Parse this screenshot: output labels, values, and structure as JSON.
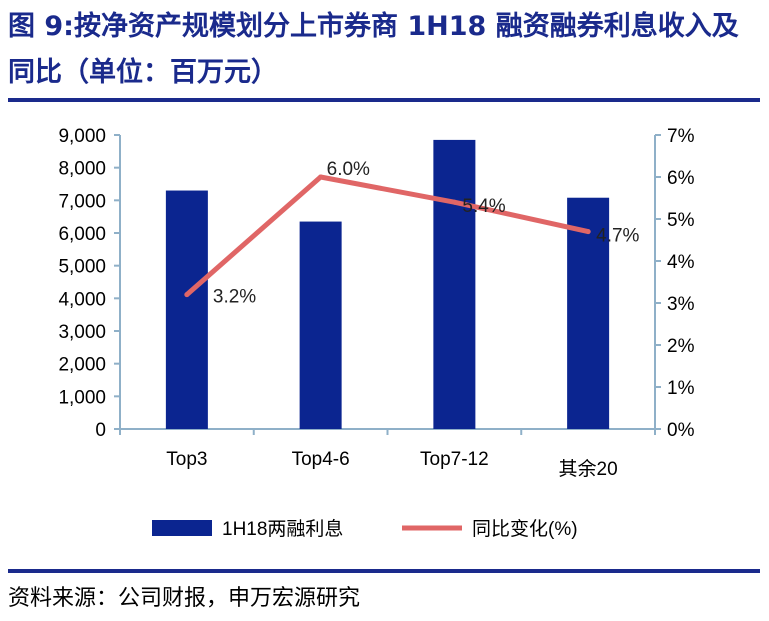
{
  "title": "图 9:按净资产规模划分上市券商 1H18 融资融券利息收入及同比（单位：百万元）",
  "source": "资料来源：公司财报，申万宏源研究",
  "colors": {
    "bar": "#0b2590",
    "line": "#e06666",
    "axis": "#8fb0c8",
    "title": "#1a2a8c"
  },
  "chart_data": {
    "type": "bar",
    "categories": [
      "Top3",
      "Top4-6",
      "Top7-12",
      "其余20"
    ],
    "series": [
      {
        "name": "1H18两融利息",
        "type": "bar",
        "axis": "left",
        "values": [
          7300,
          6350,
          8850,
          7080
        ]
      },
      {
        "name": "同比变化(%)",
        "type": "line",
        "axis": "right",
        "values": [
          3.2,
          6.0,
          5.4,
          4.7
        ]
      }
    ],
    "data_labels": [
      "3.2%",
      "6.0%",
      "5.4%",
      "4.7%"
    ],
    "y_left": {
      "ylim": [
        0,
        9000
      ],
      "ticks": [
        "0",
        "1,000",
        "2,000",
        "3,000",
        "4,000",
        "5,000",
        "6,000",
        "7,000",
        "8,000",
        "9,000"
      ]
    },
    "y_right": {
      "ylim": [
        0,
        7
      ],
      "ticks": [
        "0%",
        "1%",
        "2%",
        "3%",
        "4%",
        "5%",
        "6%",
        "7%"
      ]
    },
    "grid": false,
    "legend_position": "bottom"
  }
}
